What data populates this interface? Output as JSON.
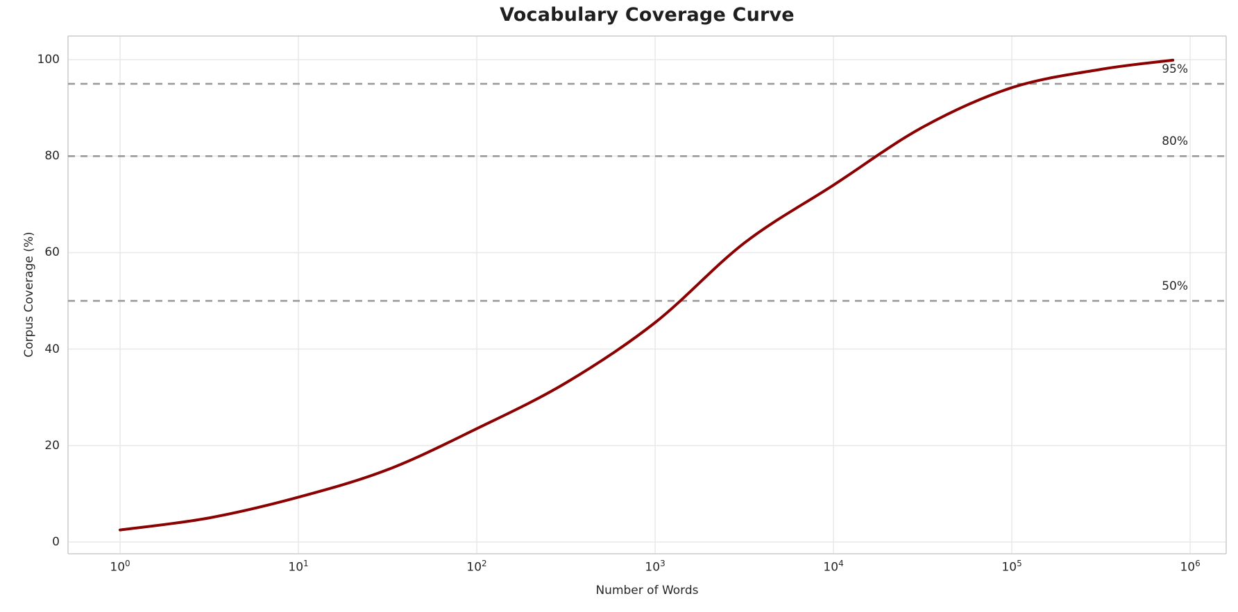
{
  "figure": {
    "background": "#ffffff"
  },
  "chart_data": {
    "type": "line",
    "title": "Vocabulary Coverage Curve",
    "xlabel": "Number of Words",
    "ylabel": "Corpus Coverage (%)",
    "x_scale": "log",
    "xlim_log10": [
      -0.292,
      6.202
    ],
    "ylim": [
      -2.44,
      104.9
    ],
    "grid": true,
    "legend": "none",
    "x_ticks": [
      {
        "value": 1,
        "base": "10",
        "exp": "0"
      },
      {
        "value": 10,
        "base": "10",
        "exp": "1"
      },
      {
        "value": 100,
        "base": "10",
        "exp": "2"
      },
      {
        "value": 1000,
        "base": "10",
        "exp": "3"
      },
      {
        "value": 10000,
        "base": "10",
        "exp": "4"
      },
      {
        "value": 100000,
        "base": "10",
        "exp": "5"
      },
      {
        "value": 1000000,
        "base": "10",
        "exp": "6"
      }
    ],
    "y_ticks": [
      {
        "value": 0,
        "label": "0"
      },
      {
        "value": 20,
        "label": "20"
      },
      {
        "value": 40,
        "label": "40"
      },
      {
        "value": 60,
        "label": "60"
      },
      {
        "value": 80,
        "label": "80"
      },
      {
        "value": 100,
        "label": "100"
      }
    ],
    "series": [
      {
        "name": "corpus-coverage",
        "color": "#8b0000",
        "line_width": 4,
        "points": [
          [
            1,
            2.5
          ],
          [
            3.16,
            5.0
          ],
          [
            10,
            9.3
          ],
          [
            31.6,
            15.0
          ],
          [
            100,
            23.5
          ],
          [
            316,
            33.0
          ],
          [
            1000,
            45.5
          ],
          [
            3162,
            62.0
          ],
          [
            10000,
            74.0
          ],
          [
            31623,
            86.0
          ],
          [
            100000,
            94.2
          ],
          [
            316228,
            98.0
          ],
          [
            800000,
            99.9
          ]
        ]
      }
    ],
    "reference_lines": [
      {
        "y": 50,
        "label": "50%"
      },
      {
        "y": 80,
        "label": "80%"
      },
      {
        "y": 95,
        "label": "95%"
      }
    ],
    "colors": {
      "line": "#8b0000",
      "reference": "#999999",
      "grid": "#e8e8e8",
      "spine": "#cccccc",
      "text": "#262626"
    }
  }
}
